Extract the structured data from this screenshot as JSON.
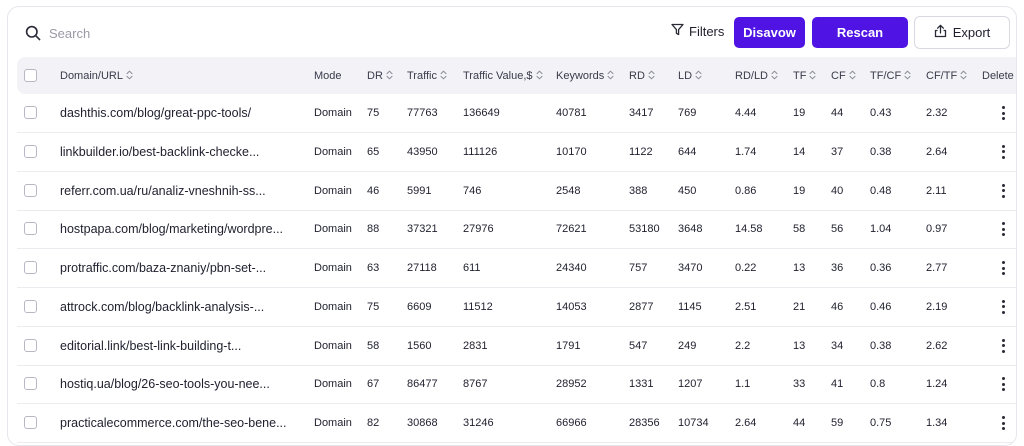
{
  "search": {
    "placeholder": "Search",
    "value": ""
  },
  "toolbar": {
    "filters_label": "Filters",
    "disavow_label": "Disavow",
    "rescan_label": "Rescan",
    "export_label": "Export"
  },
  "colors": {
    "accent": "#4f13e3",
    "header_bg": "#f2f2f7"
  },
  "table": {
    "columns": [
      {
        "key": "domain_url",
        "label": "Domain/URL",
        "sortable": true
      },
      {
        "key": "mode",
        "label": "Mode",
        "sortable": false
      },
      {
        "key": "dr",
        "label": "DR",
        "sortable": true
      },
      {
        "key": "traffic",
        "label": "Traffic",
        "sortable": true
      },
      {
        "key": "traffic_value",
        "label": "Traffic Value,$",
        "sortable": true
      },
      {
        "key": "keywords",
        "label": "Keywords",
        "sortable": true
      },
      {
        "key": "rd",
        "label": "RD",
        "sortable": true
      },
      {
        "key": "ld",
        "label": "LD",
        "sortable": true
      },
      {
        "key": "rd_ld",
        "label": "RD/LD",
        "sortable": true
      },
      {
        "key": "tf",
        "label": "TF",
        "sortable": true
      },
      {
        "key": "cf",
        "label": "CF",
        "sortable": true
      },
      {
        "key": "tf_cf",
        "label": "TF/CF",
        "sortable": true
      },
      {
        "key": "cf_tf",
        "label": "CF/TF",
        "sortable": true
      },
      {
        "key": "delete",
        "label": "Delete",
        "sortable": false
      }
    ],
    "rows": [
      {
        "domain_url": "dashthis.com/blog/great-ppc-tools/",
        "mode": "Domain",
        "dr": "75",
        "traffic": "77763",
        "traffic_value": "136649",
        "keywords": "40781",
        "rd": "3417",
        "ld": "769",
        "rd_ld": "4.44",
        "tf": "19",
        "cf": "44",
        "tf_cf": "0.43",
        "cf_tf": "2.32"
      },
      {
        "domain_url": "linkbuilder.io/best-backlink-checke...",
        "mode": "Domain",
        "dr": "65",
        "traffic": "43950",
        "traffic_value": "111126",
        "keywords": "10170",
        "rd": "1122",
        "ld": "644",
        "rd_ld": "1.74",
        "tf": "14",
        "cf": "37",
        "tf_cf": "0.38",
        "cf_tf": "2.64"
      },
      {
        "domain_url": "referr.com.ua/ru/analiz-vneshnih-ss...",
        "mode": "Domain",
        "dr": "46",
        "traffic": "5991",
        "traffic_value": "746",
        "keywords": "2548",
        "rd": "388",
        "ld": "450",
        "rd_ld": "0.86",
        "tf": "19",
        "cf": "40",
        "tf_cf": "0.48",
        "cf_tf": "2.11"
      },
      {
        "domain_url": "hostpapa.com/blog/marketing/wordpre...",
        "mode": "Domain",
        "dr": "88",
        "traffic": "37321",
        "traffic_value": "27976",
        "keywords": "72621",
        "rd": "53180",
        "ld": "3648",
        "rd_ld": "14.58",
        "tf": "58",
        "cf": "56",
        "tf_cf": "1.04",
        "cf_tf": "0.97"
      },
      {
        "domain_url": "protraffic.com/baza-znaniy/pbn-set-...",
        "mode": "Domain",
        "dr": "63",
        "traffic": "27118",
        "traffic_value": "611",
        "keywords": "24340",
        "rd": "757",
        "ld": "3470",
        "rd_ld": "0.22",
        "tf": "13",
        "cf": "36",
        "tf_cf": "0.36",
        "cf_tf": "2.77"
      },
      {
        "domain_url": "attrock.com/blog/backlink-analysis-...",
        "mode": "Domain",
        "dr": "75",
        "traffic": "6609",
        "traffic_value": "11512",
        "keywords": "14053",
        "rd": "2877",
        "ld": "1145",
        "rd_ld": "2.51",
        "tf": "21",
        "cf": "46",
        "tf_cf": "0.46",
        "cf_tf": "2.19"
      },
      {
        "domain_url": "editorial.link/best-link-building-t...",
        "mode": "Domain",
        "dr": "58",
        "traffic": "1560",
        "traffic_value": "2831",
        "keywords": "1791",
        "rd": "547",
        "ld": "249",
        "rd_ld": "2.2",
        "tf": "13",
        "cf": "34",
        "tf_cf": "0.38",
        "cf_tf": "2.62"
      },
      {
        "domain_url": "hostiq.ua/blog/26-seo-tools-you-nee...",
        "mode": "Domain",
        "dr": "67",
        "traffic": "86477",
        "traffic_value": "8767",
        "keywords": "28952",
        "rd": "1331",
        "ld": "1207",
        "rd_ld": "1.1",
        "tf": "33",
        "cf": "41",
        "tf_cf": "0.8",
        "cf_tf": "1.24"
      },
      {
        "domain_url": "practicalecommerce.com/the-seo-bene...",
        "mode": "Domain",
        "dr": "82",
        "traffic": "30868",
        "traffic_value": "31246",
        "keywords": "66966",
        "rd": "28356",
        "ld": "10734",
        "rd_ld": "2.64",
        "tf": "44",
        "cf": "59",
        "tf_cf": "0.75",
        "cf_tf": "1.34"
      }
    ]
  }
}
